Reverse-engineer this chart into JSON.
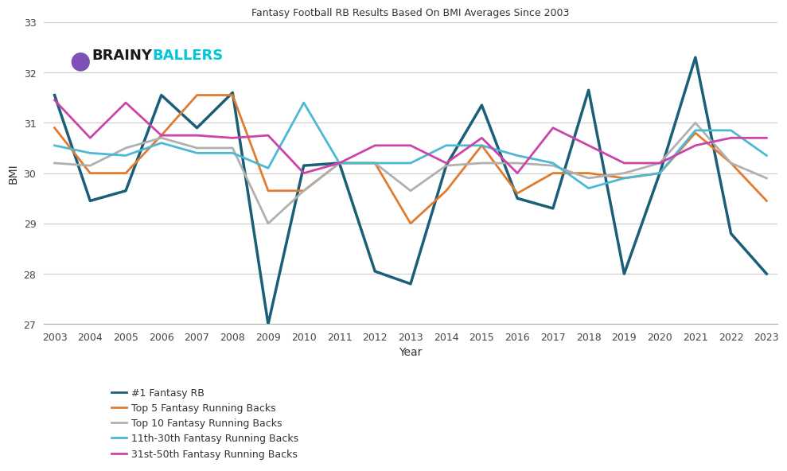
{
  "title": "Fantasy Football RB Results Based On BMI Averages Since 2003",
  "xlabel": "Year",
  "ylabel": "BMI",
  "years": [
    2003,
    2004,
    2005,
    2006,
    2007,
    2008,
    2009,
    2010,
    2011,
    2012,
    2013,
    2014,
    2015,
    2016,
    2017,
    2018,
    2019,
    2020,
    2021,
    2022,
    2023
  ],
  "ylim": [
    27,
    33
  ],
  "yticks": [
    27,
    28,
    29,
    30,
    31,
    32,
    33
  ],
  "series": {
    "#1 Fantasy RB": {
      "color": "#1b5e78",
      "linewidth": 2.5,
      "values": [
        31.55,
        29.45,
        29.65,
        31.55,
        30.9,
        31.6,
        27.0,
        30.15,
        30.2,
        28.05,
        27.8,
        30.15,
        31.35,
        29.5,
        29.3,
        31.65,
        28.0,
        30.0,
        32.3,
        28.8,
        28.0
      ]
    },
    "Top 5 Fantasy Running Backs": {
      "color": "#e07b30",
      "linewidth": 2.0,
      "values": [
        30.9,
        30.0,
        30.0,
        30.75,
        31.55,
        31.55,
        29.65,
        29.65,
        30.2,
        30.2,
        29.0,
        29.65,
        30.55,
        29.6,
        30.0,
        30.0,
        29.9,
        30.0,
        30.8,
        30.2,
        29.45
      ]
    },
    "Top 10 Fantasy Running Backs": {
      "color": "#b0b0b0",
      "linewidth": 2.0,
      "values": [
        30.2,
        30.15,
        30.5,
        30.7,
        30.5,
        30.5,
        29.0,
        29.65,
        30.2,
        30.2,
        29.65,
        30.15,
        30.2,
        30.2,
        30.15,
        29.9,
        30.0,
        30.2,
        31.0,
        30.2,
        29.9
      ]
    },
    "11th-30th Fantasy Running Backs": {
      "color": "#4db8d4",
      "linewidth": 2.0,
      "values": [
        30.55,
        30.4,
        30.35,
        30.6,
        30.4,
        30.4,
        30.1,
        31.4,
        30.2,
        30.2,
        30.2,
        30.55,
        30.55,
        30.35,
        30.2,
        29.7,
        29.9,
        30.0,
        30.85,
        30.85,
        30.35
      ]
    },
    "31st-50th Fantasy Running Backs": {
      "color": "#cc44aa",
      "linewidth": 2.0,
      "values": [
        31.45,
        30.7,
        31.4,
        30.75,
        30.75,
        30.7,
        30.75,
        30.0,
        30.2,
        30.55,
        30.55,
        30.2,
        30.7,
        30.0,
        30.9,
        30.55,
        30.2,
        30.2,
        30.55,
        30.7,
        30.7
      ]
    }
  },
  "legend_labels": [
    "#1 Fantasy RB",
    "Top 5 Fantasy Running Backs",
    "Top 10 Fantasy Running Backs",
    "11th-30th Fantasy Running Backs",
    "31st-50th Fantasy Running Backs"
  ],
  "legend_colors": {
    "#1 Fantasy RB": "#1b5e78",
    "Top 5 Fantasy Running Backs": "#e07b30",
    "Top 10 Fantasy Running Backs": "#b0b0b0",
    "11th-30th Fantasy Running Backs": "#4db8d4",
    "31st-50th Fantasy Running Backs": "#cc44aa"
  },
  "background_color": "#ffffff",
  "grid_color": "#cccccc",
  "title_fontsize": 9,
  "label_fontsize": 10,
  "tick_fontsize": 9,
  "legend_fontsize": 9,
  "brainy_color": "#1a1a1a",
  "ballers_color": "#00c8d4"
}
